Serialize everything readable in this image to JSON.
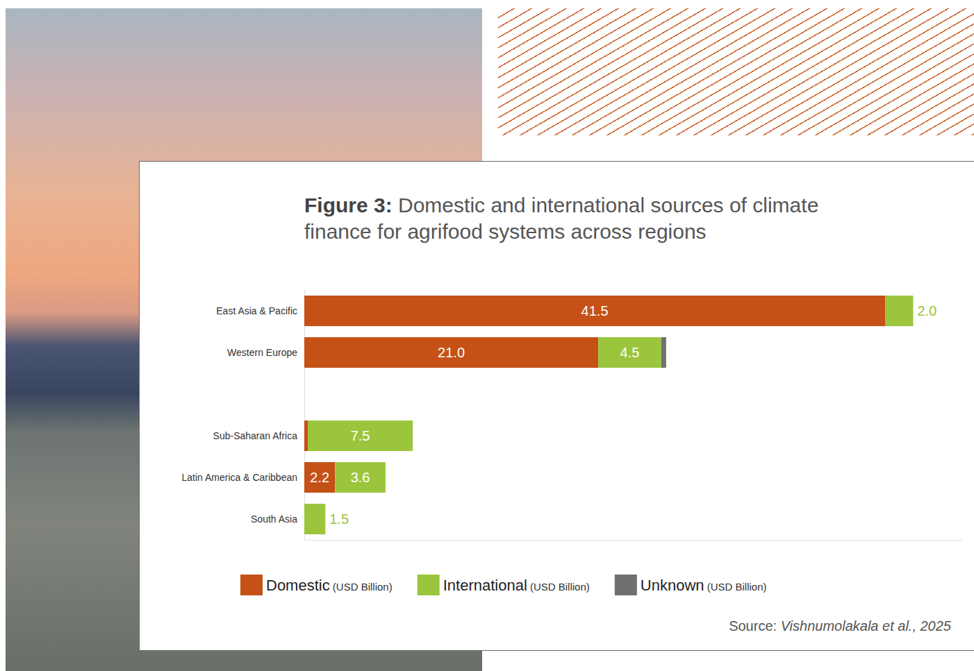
{
  "chart_data": {
    "type": "bar",
    "orientation": "horizontal",
    "stacked": true,
    "title": "Figure 3: Domestic and international sources of climate finance for agrifood systems across regions",
    "categories": [
      "East Asia & Pacific",
      "Western Europe",
      null,
      "Sub-Saharan Africa",
      "Latin America & Caribbean",
      "South Asia"
    ],
    "series": [
      {
        "name": "Domestic (USD Billion)",
        "color": "#c55116",
        "values": [
          41.5,
          21.0,
          null,
          0.25,
          2.2,
          null
        ],
        "value_labels": [
          "41.5",
          "21.0",
          null,
          null,
          "2.2",
          null
        ]
      },
      {
        "name": "International (USD Billion)",
        "color": "#9bc53d",
        "values": [
          2.0,
          4.5,
          null,
          7.5,
          3.6,
          1.5
        ],
        "value_labels": [
          "2.0",
          "4.5",
          null,
          "7.5",
          "3.6",
          "1.5"
        ]
      },
      {
        "name": "Unknown (USD Billion)",
        "color": "#707070",
        "values": [
          null,
          0.35,
          null,
          null,
          null,
          null
        ],
        "value_labels": [
          null,
          null,
          null,
          null,
          null,
          null
        ]
      }
    ],
    "xlim": [
      0,
      47
    ],
    "grid": false,
    "legend": "bottom",
    "data_labels": true,
    "tick_labels": "y",
    "annotations": [
      "Source: Vishnumolakala et al., 2025"
    ]
  }
}
